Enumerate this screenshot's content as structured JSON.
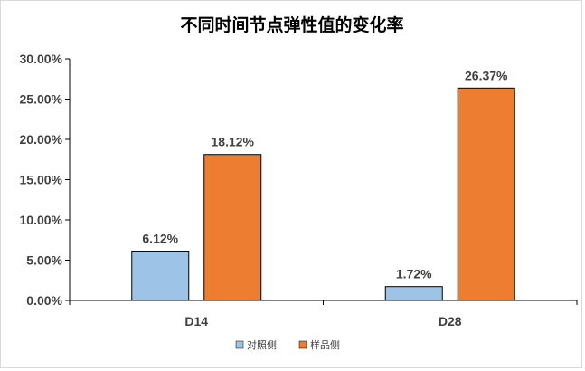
{
  "chart_data": {
    "type": "bar",
    "title": "不同时间节点弹性值的变化率",
    "categories": [
      "D14",
      "D28"
    ],
    "series": [
      {
        "name": "对照侧",
        "color": "#9dc3e6",
        "values": [
          6.12,
          1.72
        ],
        "labels": [
          "6.12%",
          "1.72%"
        ]
      },
      {
        "name": "样品侧",
        "color": "#ed7d31",
        "values": [
          18.12,
          26.37
        ],
        "labels": [
          "18.12%",
          "26.37%"
        ]
      }
    ],
    "ylim": [
      0,
      30
    ],
    "yticks": [
      0,
      5,
      10,
      15,
      20,
      25,
      30
    ],
    "ytick_labels": [
      "0.00%",
      "5.00%",
      "10.00%",
      "15.00%",
      "20.00%",
      "25.00%",
      "30.00%"
    ],
    "xlabel": "",
    "ylabel": "",
    "legend_position": "bottom",
    "grid": false
  }
}
